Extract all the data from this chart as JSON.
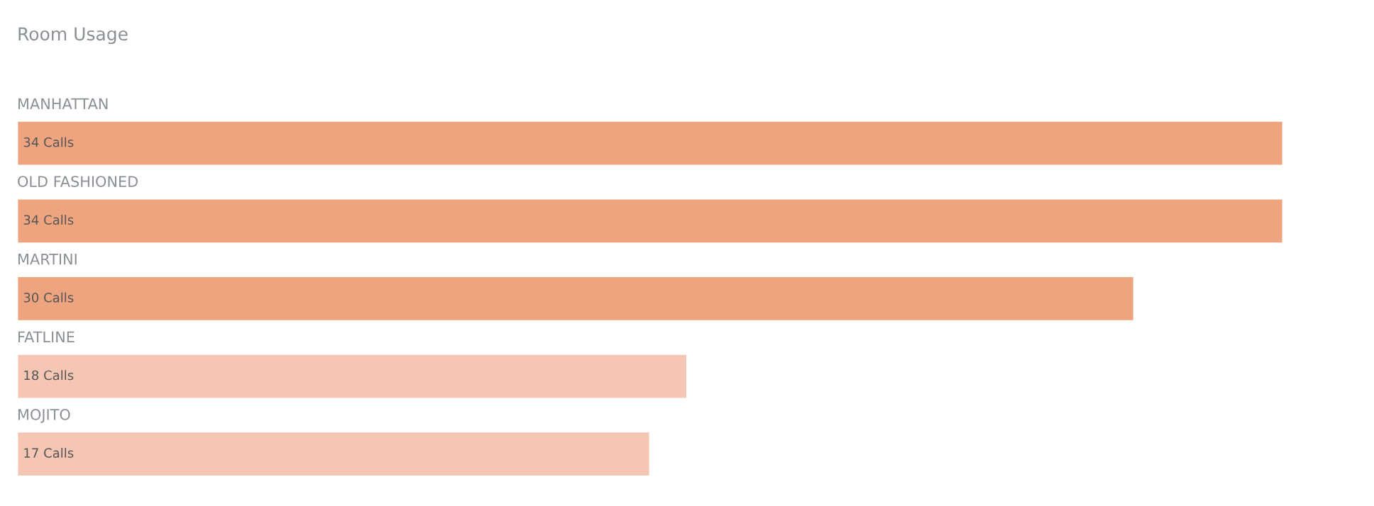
{
  "chart_data": {
    "type": "bar",
    "orientation": "horizontal",
    "title": "Room Usage",
    "categories": [
      "MANHATTAN",
      "OLD FASHIONED",
      "MARTINI",
      "FATLINE",
      "MOJITO"
    ],
    "values": [
      34,
      34,
      30,
      18,
      17
    ],
    "value_labels": [
      "34 Calls",
      "34 Calls",
      "30 Calls",
      "18 Calls",
      "17 Calls"
    ],
    "colors": [
      "#eea47f",
      "#eea47f",
      "#eea47f",
      "#f5c6b4",
      "#f5c6b4"
    ]
  }
}
